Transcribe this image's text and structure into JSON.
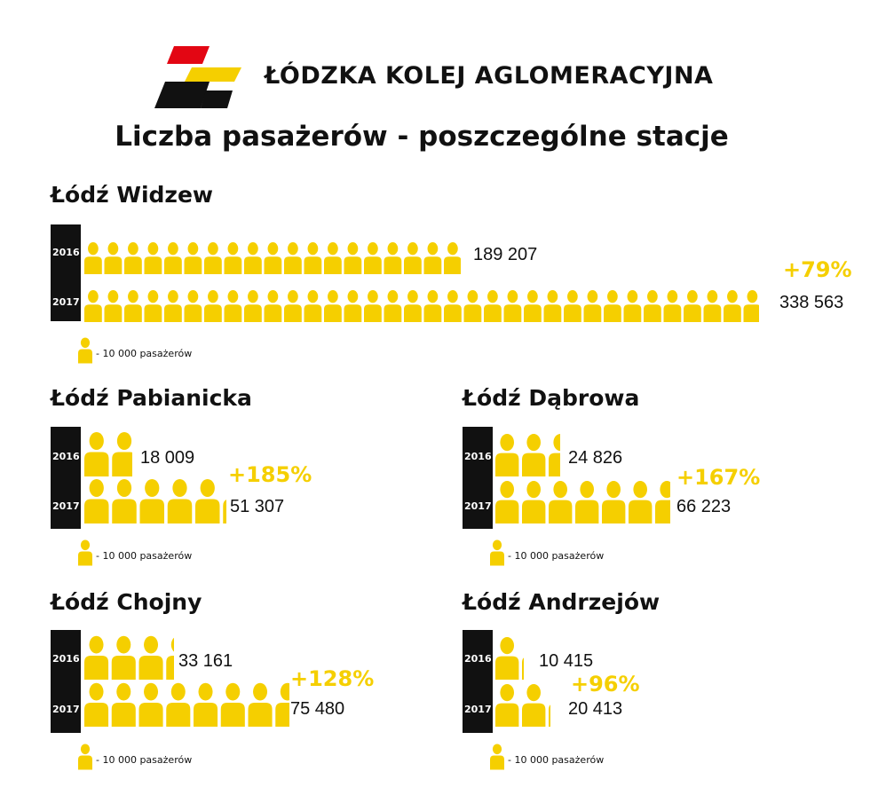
{
  "header": {
    "brand": "ŁÓDZKA KOLEJ AGLOMERACYJNA",
    "title": "Liczba pasażerów - poszczególne stacje",
    "logo_colors": [
      "#e30613",
      "#f5cf00",
      "#111111"
    ]
  },
  "legend_text": "- 10 000 pasażerów",
  "icon_name": "person-icon",
  "colors": {
    "icon": "#f5cf00",
    "percent": "#f5cf00",
    "year_bar": "#111111"
  },
  "chart_data": [
    {
      "type": "pictogram",
      "title": "Łódź Widzew",
      "unit_per_icon": 10000,
      "categories": [
        "2016",
        "2017"
      ],
      "values": [
        189207,
        338563
      ],
      "value_labels": [
        "189 207",
        "338 563"
      ],
      "change": "+79%"
    },
    {
      "type": "pictogram",
      "title": "Łódź Pabianicka",
      "unit_per_icon": 10000,
      "categories": [
        "2016",
        "2017"
      ],
      "values": [
        18009,
        51307
      ],
      "value_labels": [
        "18 009",
        "51 307"
      ],
      "change": "+185%"
    },
    {
      "type": "pictogram",
      "title": "Łódź Dąbrowa",
      "unit_per_icon": 10000,
      "categories": [
        "2016",
        "2017"
      ],
      "values": [
        24826,
        66223
      ],
      "value_labels": [
        "24 826",
        "66 223"
      ],
      "change": "+167%"
    },
    {
      "type": "pictogram",
      "title": "Łódź Chojny",
      "unit_per_icon": 10000,
      "categories": [
        "2016",
        "2017"
      ],
      "values": [
        33161,
        75480
      ],
      "value_labels": [
        "33 161",
        "75 480"
      ],
      "change": "+128%"
    },
    {
      "type": "pictogram",
      "title": "Łódź Andrzejów",
      "unit_per_icon": 10000,
      "categories": [
        "2016",
        "2017"
      ],
      "values": [
        10415,
        20413
      ],
      "value_labels": [
        "10 415",
        "20 413"
      ],
      "change": "+96%"
    }
  ]
}
